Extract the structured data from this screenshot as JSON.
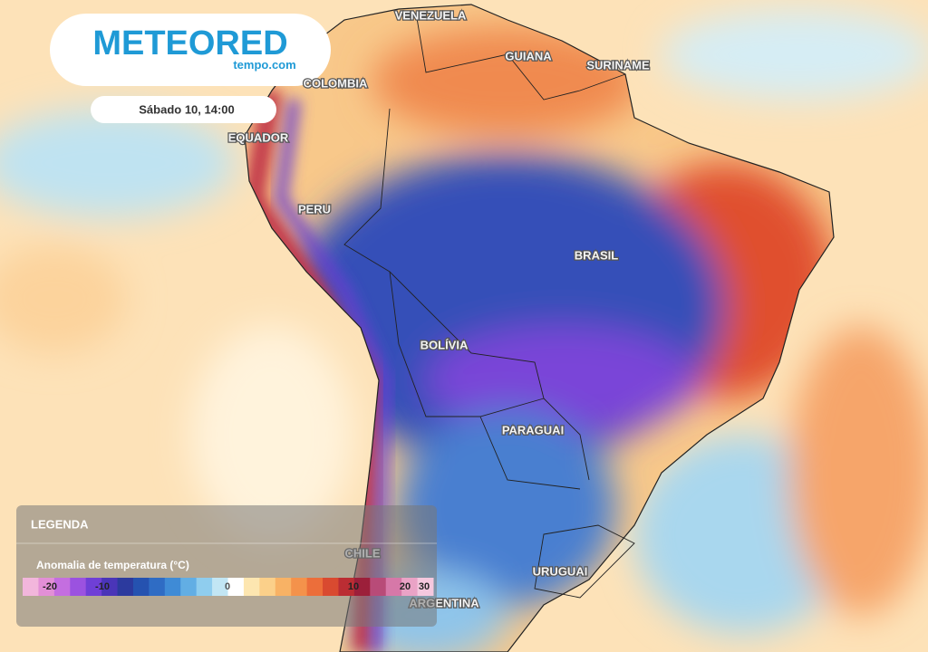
{
  "header": {
    "logo": "METEORED",
    "site": "tempo.com",
    "date": "Sábado 10, 14:00"
  },
  "labels": [
    "VENEZUELA",
    "GUIANA",
    "SURINAME",
    "COLOMBIA",
    "EQUADOR",
    "PERU",
    "BRASIL",
    "BOLÍVIA",
    "PARAGUAI",
    "CHILE",
    "URUGUAI",
    "ARGENTINA"
  ],
  "legend": {
    "title": "LEGENDA",
    "subtitle": "Anomalia de temperatura (°C)",
    "ticks": [
      -20,
      -10,
      0,
      10,
      20,
      30
    ],
    "colors": [
      "#f2b6dc",
      "#e28fd6",
      "#c46ee0",
      "#9b52e0",
      "#6f3fd6",
      "#4a35b8",
      "#2c3a9e",
      "#2552b0",
      "#2f6cc4",
      "#3f8bd6",
      "#62aee4",
      "#8fcdee",
      "#c2e6f4",
      "#ffffff",
      "#fde6b0",
      "#fbd08a",
      "#f8b265",
      "#f4924b",
      "#ec6e3a",
      "#d94a30",
      "#bb2d33",
      "#9c1f3a",
      "#b84b78",
      "#d678a8",
      "#eaa3c6",
      "#f5c8de"
    ]
  }
}
